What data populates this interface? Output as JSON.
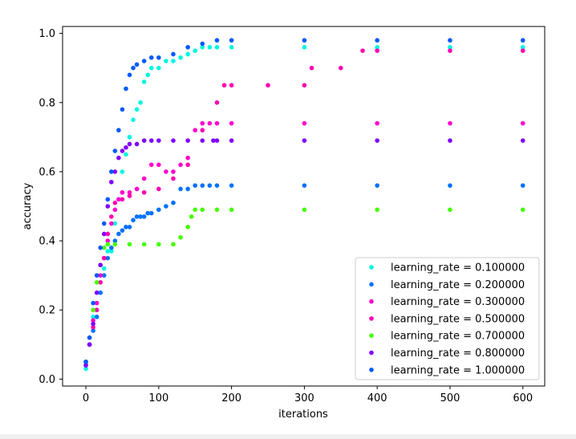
{
  "chart_data": {
    "type": "scatter",
    "title": "",
    "xlabel": "iterations",
    "ylabel": "accuracy",
    "xlim": [
      -32,
      630
    ],
    "ylim": [
      -0.02,
      1.02
    ],
    "x_ticks": [
      0,
      100,
      200,
      300,
      400,
      500,
      600
    ],
    "x_tick_labels": [
      "0",
      "100",
      "200",
      "300",
      "400",
      "500",
      "600"
    ],
    "y_ticks": [
      0.0,
      0.2,
      0.4,
      0.6,
      0.8,
      1.0
    ],
    "y_tick_labels": [
      "0.0",
      "0.2",
      "0.4",
      "0.6",
      "0.8",
      "1.0"
    ],
    "grid": false,
    "legend_position": "lower-right",
    "series": [
      {
        "name": "learning_rate = 0.100000",
        "color": "#00f5e0",
        "x": [
          0,
          5,
          10,
          15,
          20,
          25,
          30,
          35,
          40,
          45,
          50,
          55,
          60,
          65,
          70,
          75,
          80,
          85,
          90,
          100,
          110,
          120,
          130,
          140,
          150,
          160,
          170,
          180,
          200,
          300,
          400,
          500,
          600
        ],
        "y": [
          0.03,
          0.1,
          0.18,
          0.2,
          0.25,
          0.32,
          0.37,
          0.37,
          0.45,
          0.52,
          0.6,
          0.65,
          0.7,
          0.75,
          0.78,
          0.8,
          0.86,
          0.88,
          0.9,
          0.9,
          0.92,
          0.92,
          0.93,
          0.94,
          0.95,
          0.96,
          0.96,
          0.96,
          0.96,
          0.96,
          0.96,
          0.96,
          0.96
        ]
      },
      {
        "name": "learning_rate = 0.200000",
        "color": "#0072ff",
        "x": [
          0,
          5,
          10,
          15,
          20,
          25,
          30,
          35,
          40,
          45,
          50,
          55,
          60,
          65,
          70,
          75,
          80,
          85,
          90,
          100,
          110,
          120,
          130,
          140,
          150,
          160,
          170,
          180,
          200,
          300,
          400,
          500,
          600
        ],
        "y": [
          0.05,
          0.1,
          0.14,
          0.18,
          0.25,
          0.3,
          0.35,
          0.38,
          0.4,
          0.42,
          0.43,
          0.44,
          0.44,
          0.46,
          0.47,
          0.47,
          0.47,
          0.48,
          0.48,
          0.49,
          0.5,
          0.51,
          0.55,
          0.55,
          0.56,
          0.56,
          0.56,
          0.56,
          0.56,
          0.56,
          0.56,
          0.56,
          0.56
        ]
      },
      {
        "name": "learning_rate = 0.300000",
        "color": "#ff00cc",
        "x": [
          0,
          5,
          10,
          15,
          20,
          25,
          30,
          35,
          40,
          45,
          50,
          60,
          70,
          80,
          90,
          100,
          110,
          120,
          130,
          140,
          150,
          160,
          170,
          180,
          200,
          300,
          400,
          500,
          600
        ],
        "y": [
          0.05,
          0.12,
          0.17,
          0.22,
          0.3,
          0.35,
          0.4,
          0.45,
          0.49,
          0.52,
          0.54,
          0.54,
          0.55,
          0.58,
          0.62,
          0.62,
          0.6,
          0.6,
          0.62,
          0.64,
          0.72,
          0.74,
          0.74,
          0.74,
          0.74,
          0.74,
          0.74,
          0.74,
          0.74
        ]
      },
      {
        "name": "learning_rate = 0.500000",
        "color": "#ff00b0",
        "x": [
          0,
          5,
          10,
          15,
          20,
          25,
          30,
          35,
          40,
          50,
          60,
          80,
          100,
          120,
          140,
          160,
          180,
          190,
          200,
          250,
          300,
          310,
          350,
          380,
          400,
          500,
          600
        ],
        "y": [
          0.04,
          0.1,
          0.15,
          0.2,
          0.28,
          0.35,
          0.42,
          0.47,
          0.51,
          0.52,
          0.53,
          0.54,
          0.55,
          0.58,
          0.62,
          0.72,
          0.8,
          0.85,
          0.85,
          0.85,
          0.85,
          0.9,
          0.9,
          0.95,
          0.95,
          0.95,
          0.95
        ]
      },
      {
        "name": "learning_rate = 0.700000",
        "color": "#44ff00",
        "x": [
          0,
          5,
          10,
          15,
          20,
          25,
          30,
          40,
          60,
          80,
          100,
          120,
          130,
          140,
          145,
          150,
          160,
          180,
          200,
          300,
          400,
          500,
          600
        ],
        "y": [
          0.05,
          0.12,
          0.2,
          0.28,
          0.33,
          0.38,
          0.39,
          0.39,
          0.39,
          0.39,
          0.39,
          0.39,
          0.41,
          0.44,
          0.47,
          0.49,
          0.49,
          0.49,
          0.49,
          0.49,
          0.49,
          0.49,
          0.49
        ]
      },
      {
        "name": "learning_rate = 0.800000",
        "color": "#8000ff",
        "x": [
          0,
          5,
          10,
          15,
          20,
          25,
          30,
          35,
          40,
          45,
          50,
          55,
          60,
          70,
          80,
          90,
          100,
          120,
          140,
          160,
          175,
          180,
          200,
          300,
          400,
          500,
          600
        ],
        "y": [
          0.04,
          0.1,
          0.16,
          0.25,
          0.33,
          0.42,
          0.5,
          0.57,
          0.6,
          0.64,
          0.66,
          0.67,
          0.68,
          0.68,
          0.69,
          0.69,
          0.69,
          0.69,
          0.69,
          0.69,
          0.69,
          0.69,
          0.69,
          0.69,
          0.69,
          0.69,
          0.69
        ]
      },
      {
        "name": "learning_rate = 1.000000",
        "color": "#0059ff",
        "x": [
          0,
          5,
          10,
          15,
          20,
          25,
          30,
          35,
          40,
          45,
          50,
          55,
          60,
          65,
          70,
          80,
          90,
          100,
          120,
          140,
          160,
          180,
          200,
          300,
          400,
          500,
          600
        ],
        "y": [
          0.05,
          0.12,
          0.22,
          0.3,
          0.38,
          0.45,
          0.52,
          0.6,
          0.66,
          0.72,
          0.78,
          0.84,
          0.88,
          0.9,
          0.91,
          0.92,
          0.93,
          0.93,
          0.94,
          0.96,
          0.97,
          0.98,
          0.98,
          0.98,
          0.98,
          0.98,
          0.98
        ]
      }
    ]
  }
}
